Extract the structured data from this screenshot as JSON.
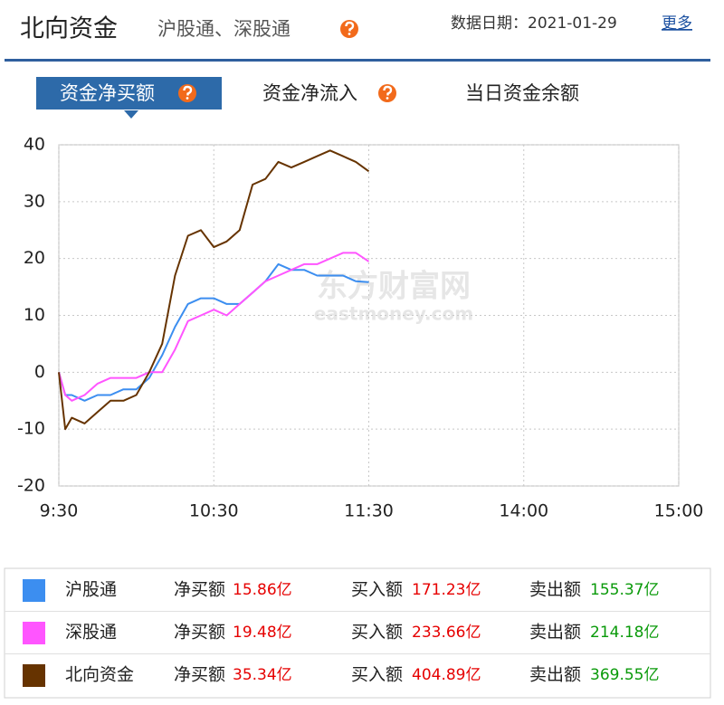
{
  "header": {
    "title": "北向资金",
    "subtitle": "沪股通、深股通",
    "date_label": "数据日期：2021-01-29",
    "more": "更多"
  },
  "tabs": [
    "资金净买额",
    "资金净流入",
    "当日资金余额"
  ],
  "watermark": [
    "东方财富网",
    "eastmoney.com"
  ],
  "chart_data": {
    "type": "line",
    "x": [
      0,
      2.5,
      5,
      10,
      15,
      20,
      25,
      30,
      35,
      40,
      45,
      50,
      55,
      60,
      65,
      70,
      75,
      80,
      85,
      90,
      95,
      100,
      105,
      110,
      115,
      120
    ],
    "xlim": [
      0,
      240
    ],
    "xticks": [
      {
        "value": 0,
        "label": "9:30"
      },
      {
        "value": 60,
        "label": "10:30"
      },
      {
        "value": 120,
        "label": "11:30"
      },
      {
        "value": 180,
        "label": "14:00"
      },
      {
        "value": 240,
        "label": "15:00"
      }
    ],
    "ylim": [
      -20,
      40
    ],
    "yticks": [
      40,
      30,
      20,
      10,
      0,
      -10,
      -20
    ],
    "grid": true,
    "series": [
      {
        "name": "沪股通",
        "color": "#3c8ef0",
        "values": [
          0,
          -4,
          -4,
          -5,
          -4,
          -4,
          -3,
          -3,
          -1,
          3,
          8,
          12,
          13,
          13,
          12,
          12,
          14,
          16,
          19,
          18,
          18,
          17,
          17,
          17,
          16,
          15.86
        ]
      },
      {
        "name": "深股通",
        "color": "#ff55ff",
        "values": [
          0,
          -4,
          -5,
          -4,
          -2,
          -1,
          -1,
          -1,
          0,
          0,
          4,
          9,
          10,
          11,
          10,
          12,
          14,
          16,
          17,
          18,
          19,
          19,
          20,
          21,
          21,
          19.48
        ]
      },
      {
        "name": "北向资金",
        "color": "#663300",
        "values": [
          0,
          -10,
          -8,
          -9,
          -7,
          -5,
          -5,
          -4,
          0,
          5,
          17,
          24,
          25,
          22,
          23,
          25,
          33,
          34,
          37,
          36,
          37,
          38,
          39,
          38,
          37,
          35.34
        ]
      }
    ]
  },
  "table": {
    "rows": [
      [
        "净买额",
        "15.86亿",
        "买入额",
        "171.23亿",
        "卖出额",
        "155.37亿"
      ],
      [
        "净买额",
        "19.48亿",
        "买入额",
        "233.66亿",
        "卖出额",
        "214.18亿"
      ],
      [
        "净买额",
        "35.34亿",
        "买入额",
        "404.89亿",
        "卖出额",
        "369.55亿"
      ]
    ]
  }
}
